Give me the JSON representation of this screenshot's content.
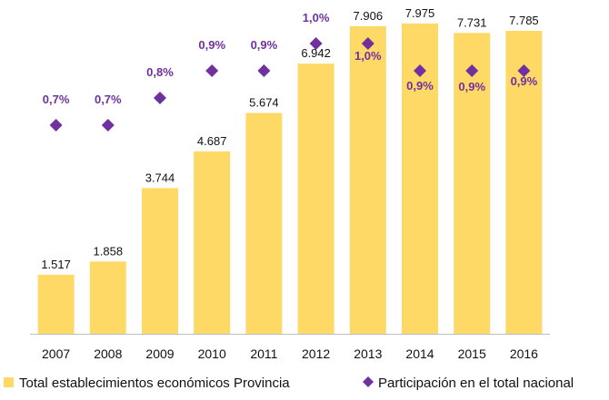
{
  "chart_data": {
    "type": "bar",
    "categories": [
      "2007",
      "2008",
      "2009",
      "2010",
      "2011",
      "2012",
      "2013",
      "2014",
      "2015",
      "2016"
    ],
    "series": [
      {
        "name": "Total establecimientos económicos Provincia",
        "type": "bar",
        "axis": "left",
        "values": [
          1517,
          1858,
          3744,
          4687,
          5674,
          6942,
          7906,
          7975,
          7731,
          7785
        ],
        "labels": [
          "1.517",
          "1.858",
          "3.744",
          "4.687",
          "5.674",
          "6.942",
          "7.906",
          "7.975",
          "7.731",
          "7.785"
        ],
        "color": "#FFD966"
      },
      {
        "name": "Participación en el total nacional",
        "type": "scatter",
        "marker": "diamond",
        "axis": "right",
        "values": [
          0.7,
          0.7,
          0.8,
          0.9,
          0.9,
          1.0,
          1.0,
          0.9,
          0.9,
          0.9
        ],
        "labels": [
          "0,7%",
          "0,7%",
          "0,8%",
          "0,9%",
          "0,9%",
          "1,0%",
          "1,0%",
          "0,9%",
          "0,9%",
          "0,9%"
        ],
        "color": "#7030A0"
      }
    ],
    "legend_position": "bottom",
    "grid": false
  }
}
